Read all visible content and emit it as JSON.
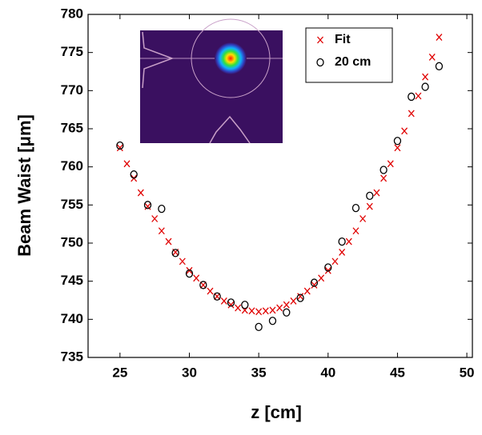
{
  "chart_data": {
    "type": "scatter",
    "xlabel": "z [cm]",
    "ylabel": "Beam Waist  [μm]",
    "xlim": [
      22.7,
      50.4
    ],
    "ylim": [
      735,
      780
    ],
    "xticks": [
      25,
      30,
      35,
      40,
      45,
      50
    ],
    "yticks": [
      735,
      740,
      745,
      750,
      755,
      760,
      765,
      770,
      775,
      780
    ],
    "legend": "upper right",
    "series": [
      {
        "name": "Fit",
        "color": "#e00000",
        "marker": "x",
        "x": [
          25,
          25.5,
          26,
          26.5,
          27,
          27.5,
          28,
          28.5,
          29,
          29.5,
          30,
          30.5,
          31,
          31.5,
          32,
          32.5,
          33,
          33.5,
          34,
          34.5,
          35,
          35.5,
          36,
          36.5,
          37,
          37.5,
          38,
          38.5,
          39,
          39.5,
          40,
          40.5,
          41,
          41.5,
          42,
          42.5,
          43,
          43.5,
          44,
          44.5,
          45,
          45.5,
          46,
          46.5,
          47,
          47.5,
          48
        ],
        "values": [
          762.5,
          760.4,
          758.5,
          756.6,
          754.8,
          753.2,
          751.6,
          750.2,
          748.8,
          747.6,
          746.4,
          745.4,
          744.5,
          743.7,
          743.0,
          742.4,
          741.9,
          741.5,
          741.2,
          741.1,
          741.0,
          741.1,
          741.2,
          741.5,
          741.9,
          742.4,
          743.0,
          743.7,
          744.5,
          745.4,
          746.4,
          747.6,
          748.8,
          750.2,
          751.6,
          753.2,
          754.8,
          756.6,
          758.5,
          760.4,
          762.5,
          764.7,
          767.0,
          769.3,
          771.8,
          774.4,
          777.0
        ]
      },
      {
        "name": "20 cm",
        "color": "#000000",
        "marker": "o",
        "x": [
          25,
          26,
          27,
          28,
          29,
          30,
          31,
          32,
          33,
          34,
          35,
          36,
          37,
          38,
          39,
          40,
          41,
          42,
          43,
          44,
          45,
          46,
          47,
          48
        ],
        "values": [
          762.8,
          759,
          755,
          754.5,
          748.7,
          746,
          744.5,
          743,
          742.2,
          741.9,
          739,
          739.8,
          740.9,
          742.8,
          744.8,
          746.8,
          750.2,
          754.6,
          756.2,
          759.6,
          763.4,
          769.2,
          770.5,
          773.2
        ]
      }
    ]
  }
}
